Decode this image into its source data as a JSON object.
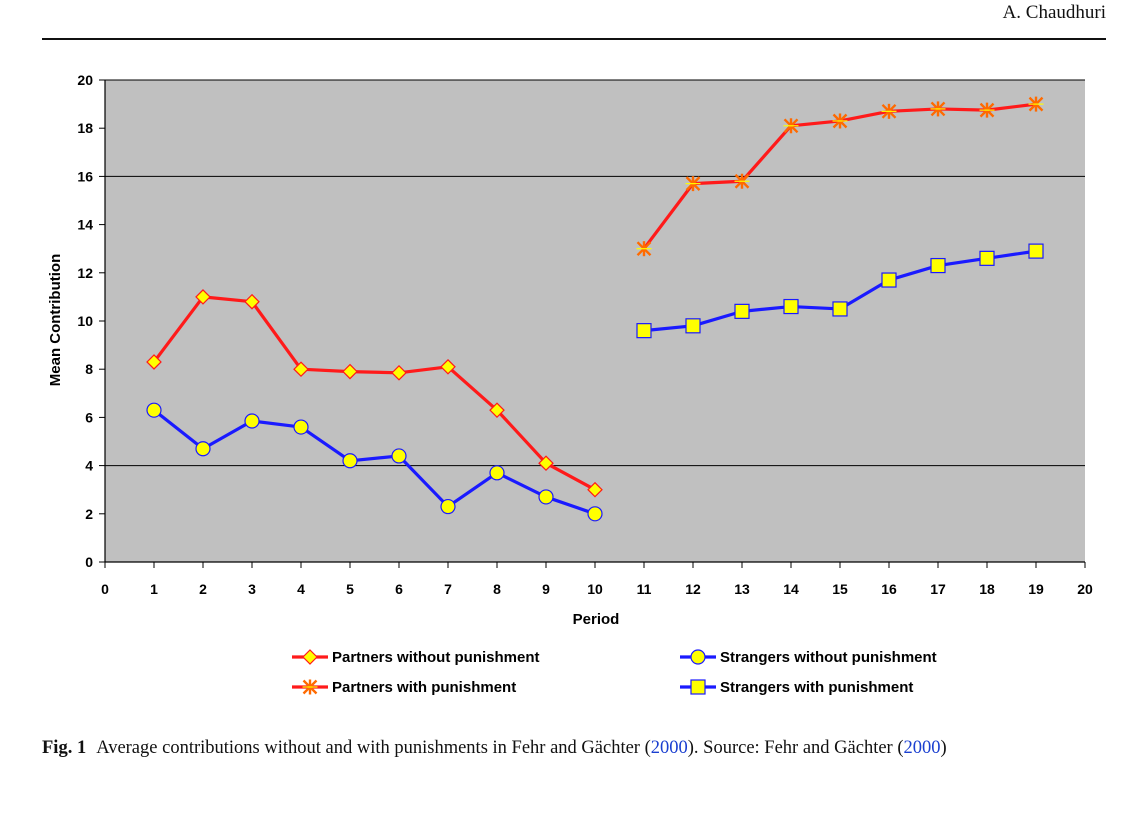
{
  "header": {
    "author": "A. Chaudhuri"
  },
  "caption": {
    "label": "Fig. 1",
    "text_1": "Average contributions without and with punishments in Fehr and Gächter (",
    "year_1": "2000",
    "text_2": "). Source: Fehr and Gächter (",
    "year_2": "2000",
    "text_3": ")"
  },
  "colors": {
    "plot_bg": "#c0c0c0",
    "red_line": "#ff1a1a",
    "blue_line": "#1a1aff",
    "marker_fill": "#ffff00",
    "star_marker": "#ff6a00"
  },
  "chart_data": {
    "type": "line",
    "title": "",
    "xlabel": "Period",
    "ylabel": "Mean Contribution",
    "xlim": [
      0,
      20
    ],
    "ylim": [
      0,
      20
    ],
    "x_ticks": [
      0,
      1,
      2,
      3,
      4,
      5,
      6,
      7,
      8,
      9,
      10,
      11,
      12,
      13,
      14,
      15,
      16,
      17,
      18,
      19,
      20
    ],
    "y_ticks": [
      0,
      2,
      4,
      6,
      8,
      10,
      12,
      14,
      16,
      18,
      20
    ],
    "gridlines_y": [
      4,
      16,
      20
    ],
    "legend_position": "bottom",
    "series": [
      {
        "name": "Partners without punishment",
        "marker": "diamond",
        "color": "#ff1a1a",
        "x": [
          1,
          2,
          3,
          4,
          5,
          6,
          7,
          8,
          9,
          10
        ],
        "y": [
          8.3,
          11.0,
          10.8,
          8.0,
          7.9,
          7.85,
          8.1,
          6.3,
          4.1,
          3.0
        ]
      },
      {
        "name": "Strangers without punishment",
        "marker": "circle",
        "color": "#1a1aff",
        "x": [
          1,
          2,
          3,
          4,
          5,
          6,
          7,
          8,
          9,
          10
        ],
        "y": [
          6.3,
          4.7,
          5.85,
          5.6,
          4.2,
          4.4,
          2.3,
          3.7,
          2.7,
          2.0
        ]
      },
      {
        "name": "Partners with punishment",
        "marker": "star",
        "color": "#ff1a1a",
        "x": [
          11,
          12,
          13,
          14,
          15,
          16,
          17,
          18,
          19
        ],
        "y": [
          13.0,
          15.7,
          15.8,
          18.1,
          18.3,
          18.7,
          18.8,
          18.75,
          19.0
        ]
      },
      {
        "name": "Strangers with punishment",
        "marker": "square",
        "color": "#1a1aff",
        "x": [
          11,
          12,
          13,
          14,
          15,
          16,
          17,
          18,
          19
        ],
        "y": [
          9.6,
          9.8,
          10.4,
          10.6,
          10.5,
          11.7,
          12.3,
          12.6,
          12.9
        ]
      }
    ]
  }
}
